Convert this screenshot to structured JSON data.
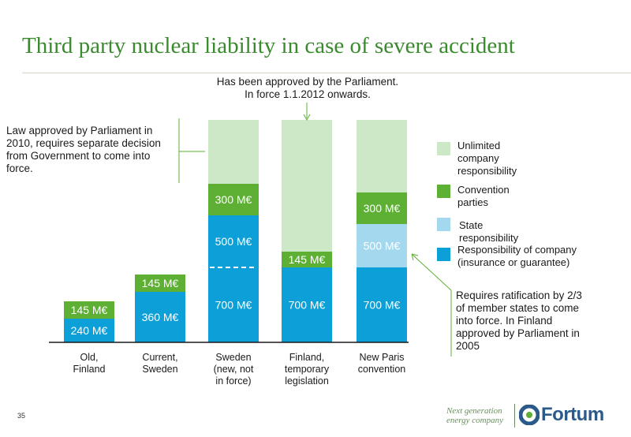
{
  "title": "Third party nuclear liability in case of severe accident",
  "annotations": {
    "top_note_line1": "Has been approved by the Parliament.",
    "top_note_line2": "In force 1.1.2012 onwards.",
    "left_note_lines": [
      "Law approved by Parliament in",
      "2010, requires separate decision",
      "from Government to come into",
      "force."
    ],
    "right_note_lines": [
      "Requires ratification by 2/3",
      "of member states to come",
      "into force. In Finland",
      "approved by Parliament in",
      "2005"
    ]
  },
  "footer": {
    "page_number": "35",
    "tagline_line1": "Next generation",
    "tagline_line2": "energy company",
    "logo_text": "Fortum"
  },
  "colors": {
    "company": "#0d9fd8",
    "state": "#a3d8ef",
    "convention": "#5eb035",
    "unlimited": "#cde8c6",
    "title": "#3a8a2e"
  },
  "chart_data": {
    "type": "bar",
    "stacked": true,
    "categories": [
      [
        "Old,",
        "Finland"
      ],
      [
        "Current,",
        "Sweden"
      ],
      [
        "Sweden",
        "(new, not",
        "in force)"
      ],
      [
        "Finland,",
        "temporary",
        "legislation"
      ],
      [
        "New Paris",
        "convention"
      ]
    ],
    "series": [
      {
        "name": "Responsibility of company (insurance or guarantee)",
        "key": "company",
        "values": [
          240,
          360,
          700,
          700,
          700
        ],
        "labels": [
          "240 M€",
          "360 M€",
          "700 M€",
          "700 M€",
          "700 M€"
        ]
      },
      {
        "name": "State responsibility",
        "key": "state",
        "values": [
          0,
          0,
          0,
          0,
          500
        ],
        "labels": [
          "",
          "",
          "",
          "",
          "500 M€"
        ]
      },
      {
        "name": "Convention parties",
        "key": "convention",
        "values": [
          145,
          145,
          300,
          145,
          300
        ],
        "labels": [
          "145 M€",
          "145 M€",
          "300 M€",
          "145 M€",
          "300 M€"
        ]
      },
      {
        "name": "Unlimited company responsibility",
        "key": "unlimited",
        "values": [
          0,
          0,
          0,
          0,
          0
        ],
        "labels": [
          "",
          "",
          "",
          "",
          ""
        ],
        "unlimited": [
          false,
          false,
          true,
          true,
          true
        ]
      }
    ],
    "sweden_split_labels": [
      "500 M€"
    ],
    "legend": [
      {
        "key": "unlimited",
        "lines": [
          "Unlimited",
          "company",
          "responsibility"
        ]
      },
      {
        "key": "convention",
        "lines": [
          "Convention",
          "parties"
        ]
      },
      {
        "key": "state",
        "lines": [
          "State",
          "responsibility"
        ]
      },
      {
        "key": "company",
        "lines": [
          "Responsibility of company",
          "(insurance or guarantee)"
        ]
      }
    ],
    "legend_placement": "right",
    "grid": false
  }
}
